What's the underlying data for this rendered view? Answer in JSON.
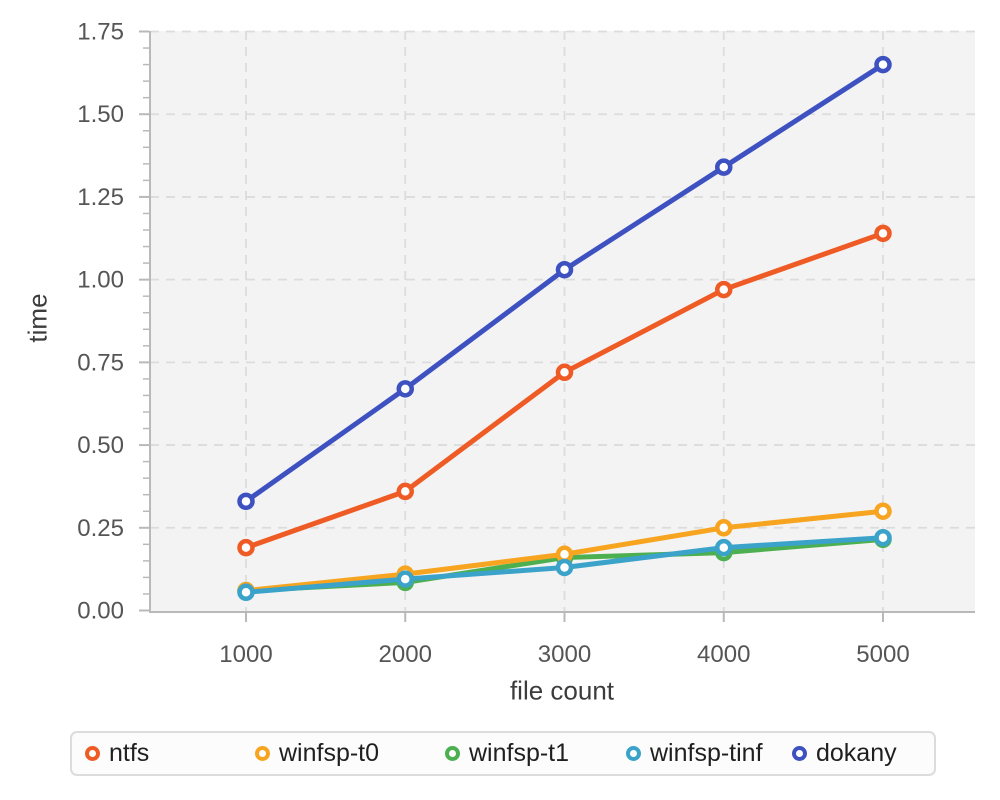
{
  "chart_data": {
    "type": "line",
    "title": "",
    "xlabel": "file count",
    "ylabel": "time",
    "x": [
      1000,
      2000,
      3000,
      4000,
      5000
    ],
    "x_tick_labels": [
      "1000",
      "2000",
      "3000",
      "4000",
      "5000"
    ],
    "y_ticks": [
      0,
      0.25,
      0.5,
      0.75,
      1.0,
      1.25,
      1.5,
      1.75
    ],
    "y_tick_labels": [
      "0.00",
      "0.25",
      "0.50",
      "0.75",
      "1.00",
      "1.25",
      "1.50",
      "1.75"
    ],
    "ylim": [
      0,
      1.75
    ],
    "xlim_padded": [
      400,
      5580
    ],
    "y_minor_step": 0.05,
    "grid": "dashed gridlines at major ticks, both axes, on light gray panel",
    "legend_position": "bottom",
    "marker": "open-circle",
    "series": [
      {
        "name": "ntfs",
        "color": "#ef5b25",
        "values": [
          0.19,
          0.36,
          0.72,
          0.97,
          1.14
        ]
      },
      {
        "name": "winfsp-t0",
        "color": "#f7a521",
        "values": [
          0.06,
          0.11,
          0.17,
          0.25,
          0.3
        ]
      },
      {
        "name": "winfsp-t1",
        "color": "#4caf50",
        "values": [
          0.06,
          0.085,
          0.16,
          0.175,
          0.215
        ]
      },
      {
        "name": "winfsp-tinf",
        "color": "#3ba3c9",
        "values": [
          0.055,
          0.095,
          0.13,
          0.19,
          0.22
        ]
      },
      {
        "name": "dokany",
        "color": "#3e51c1",
        "values": [
          0.33,
          0.67,
          1.03,
          1.34,
          1.65
        ]
      }
    ],
    "draw_order": [
      "winfsp-t1",
      "winfsp-t0",
      "winfsp-tinf",
      "ntfs",
      "dokany"
    ]
  },
  "colors": {
    "panel_bg": "#f3f3f3",
    "gridline": "#dcdcdc",
    "axis": "#b9b9b9",
    "tick_label": "#555555",
    "axis_title": "#3c3c3c",
    "legend_border": "#dcdcdc",
    "legend_bg": "#fcfcfc",
    "legend_text": "#1f1f1f"
  }
}
